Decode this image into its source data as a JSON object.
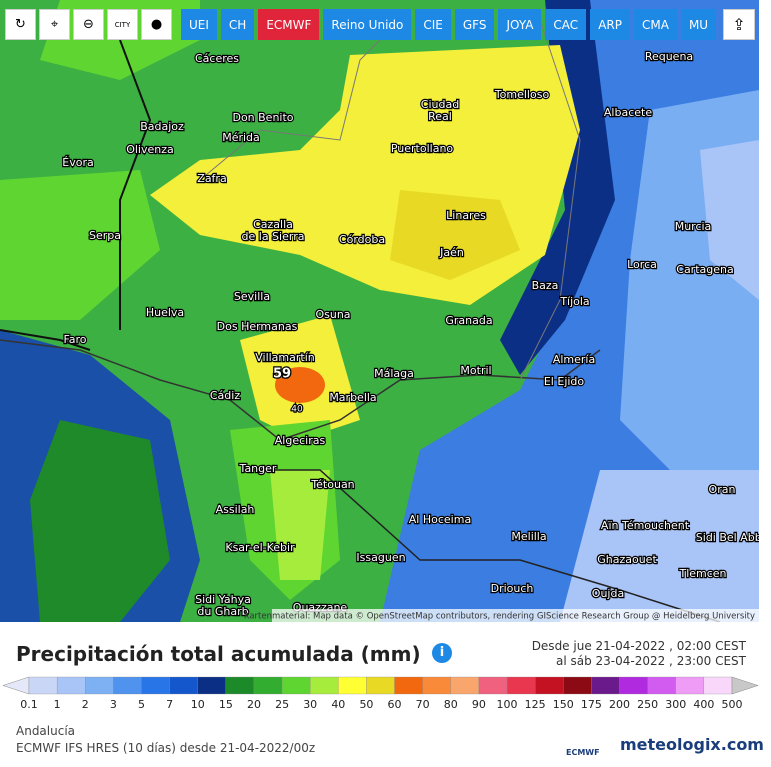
{
  "toolbar": {
    "icon_city": "CITY",
    "buttons": [
      "UEI",
      "CH",
      "ECMWF",
      "Reino Unido",
      "CIE",
      "GFS",
      "JOYA",
      "CAC",
      "ARP",
      "CMA",
      "MU"
    ],
    "active": "ECMWF"
  },
  "map": {
    "cities": [
      {
        "lines": [
          "Cáceres"
        ]
      },
      {
        "lines": [
          "Requena"
        ]
      },
      {
        "lines": [
          "Tomelloso"
        ]
      },
      {
        "lines": [
          "Ciudad",
          "Real"
        ]
      },
      {
        "lines": [
          "Albacete"
        ]
      },
      {
        "lines": [
          "Don Benito"
        ]
      },
      {
        "lines": [
          "Badajoz"
        ]
      },
      {
        "lines": [
          "Mérida"
        ]
      },
      {
        "lines": [
          "Olivenza"
        ]
      },
      {
        "lines": [
          "Puertollano"
        ]
      },
      {
        "lines": [
          "Évora"
        ]
      },
      {
        "lines": [
          "Zafra"
        ]
      },
      {
        "lines": [
          "Linares"
        ]
      },
      {
        "lines": [
          "Cazalla",
          "de la Sierra"
        ]
      },
      {
        "lines": [
          "Murcia"
        ]
      },
      {
        "lines": [
          "Serpa"
        ]
      },
      {
        "lines": [
          "Córdoba"
        ]
      },
      {
        "lines": [
          "Jaén"
        ]
      },
      {
        "lines": [
          "Lorca"
        ]
      },
      {
        "lines": [
          "Cartagena"
        ]
      },
      {
        "lines": [
          "Baza"
        ]
      },
      {
        "lines": [
          "Sevilla"
        ]
      },
      {
        "lines": [
          "Tíjola"
        ]
      },
      {
        "lines": [
          "Huelva"
        ]
      },
      {
        "lines": [
          "Osuna"
        ]
      },
      {
        "lines": [
          "Granada"
        ]
      },
      {
        "lines": [
          "Dos Hermanas"
        ]
      },
      {
        "lines": [
          "Faro"
        ]
      },
      {
        "lines": [
          "Villamartín"
        ]
      },
      {
        "lines": [
          "Almería"
        ]
      },
      {
        "lines": [
          "Málaga"
        ]
      },
      {
        "lines": [
          "Motril"
        ]
      },
      {
        "lines": [
          "El Ejido"
        ]
      },
      {
        "lines": [
          "Cádiz"
        ]
      },
      {
        "lines": [
          "Marbella"
        ]
      },
      {
        "lines": [
          "Algeciras"
        ]
      },
      {
        "lines": [
          "Tanger"
        ]
      },
      {
        "lines": [
          "Tétouan"
        ]
      },
      {
        "lines": [
          "Assilah"
        ]
      },
      {
        "lines": [
          "Al Hoceima"
        ]
      },
      {
        "lines": [
          "Aïn Témouchent"
        ]
      },
      {
        "lines": [
          "Oran"
        ]
      },
      {
        "lines": [
          "Melilla"
        ]
      },
      {
        "lines": [
          "Sidi Bel Abbès"
        ]
      },
      {
        "lines": [
          "Ksar-el-Kebir"
        ]
      },
      {
        "lines": [
          "Issaguen"
        ]
      },
      {
        "lines": [
          "Ghazaouet"
        ]
      },
      {
        "lines": [
          "Tlemcen"
        ]
      },
      {
        "lines": [
          "Driouch"
        ]
      },
      {
        "lines": [
          "Oujda"
        ]
      },
      {
        "lines": [
          "Sidi Yahya",
          "du Gharb"
        ]
      },
      {
        "lines": [
          "Ouazzane"
        ]
      }
    ],
    "max_labels": [
      "59",
      "40"
    ],
    "attribution": "Kartenmaterial: Map data © OpenStreetMap contributors, rendering GIScience Research Group @ Heidelberg University"
  },
  "panel": {
    "title": "Precipitación total acumulada (mm)",
    "date_from": "Desde jue 21-04-2022 , 02:00 CEST",
    "date_to": "al sáb 23-04-2022 , 23:00 CEST",
    "legend": {
      "labels": [
        0.1,
        1,
        2,
        3,
        5,
        7,
        10,
        15,
        20,
        25,
        30,
        40,
        50,
        60,
        70,
        80,
        90,
        100,
        125,
        150,
        175,
        200,
        250,
        300,
        400,
        500
      ],
      "colors": [
        "#e4e8f8",
        "#c9d6f5",
        "#a9c4f7",
        "#7eb0f4",
        "#4f93ee",
        "#2775e6",
        "#1457cc",
        "#0c2f86",
        "#1d8a2a",
        "#33ad2f",
        "#5fd532",
        "#a6ec3c",
        "#ffff33",
        "#e8d925",
        "#f2680f",
        "#f88a3a",
        "#f9a66c",
        "#f0607f",
        "#e8374f",
        "#c51222",
        "#8c0a14",
        "#6b1a8c",
        "#b02adf",
        "#d35cf0",
        "#ee9cf6",
        "#f8d7fb",
        "#f2eef8",
        "#c8c8c8"
      ]
    },
    "region": "Andalucía",
    "model": "ECMWF IFS HRES (10 días) desde 21-04-2022/00z",
    "logo_small": "ECMWF",
    "brand": "meteologix.com"
  }
}
